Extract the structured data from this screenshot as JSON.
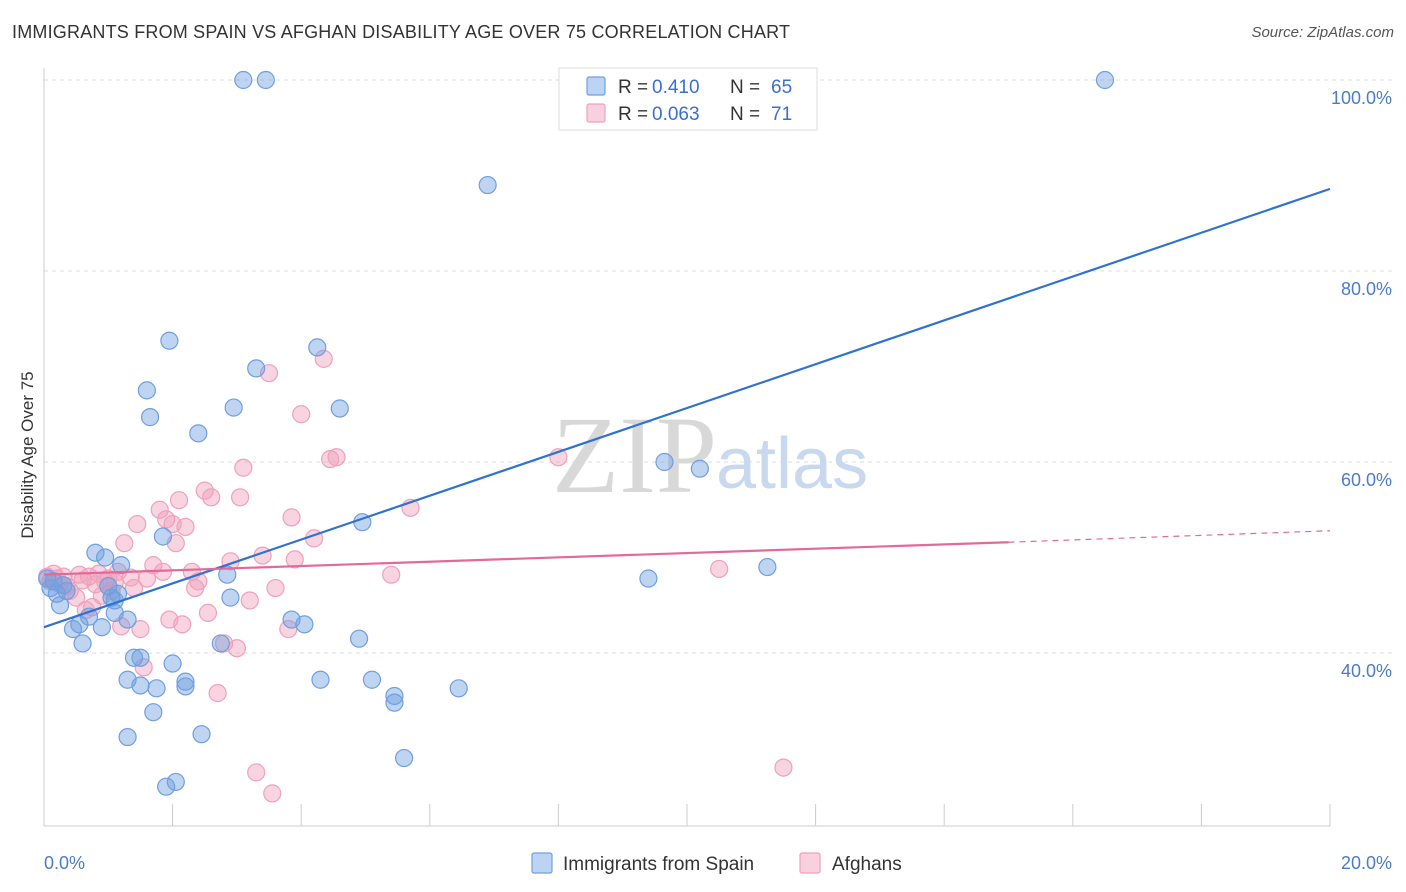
{
  "title": "IMMIGRANTS FROM SPAIN VS AFGHAN DISABILITY AGE OVER 75 CORRELATION CHART",
  "source": "Source: ZipAtlas.com",
  "watermark": {
    "zip": "ZIP",
    "atlas": "atlas"
  },
  "legend": {
    "rows": [
      {
        "r_label": "R =",
        "r_value": "0.410",
        "n_label": "N =",
        "n_value": "65"
      },
      {
        "r_label": "R =",
        "r_value": "0.063",
        "n_label": "N =",
        "n_value": "71"
      }
    ]
  },
  "chart_data": {
    "type": "scatter",
    "ylabel": "Disability Age Over 75",
    "xlim": [
      0,
      20
    ],
    "ylim": [
      22,
      102
    ],
    "x_ticks": [
      "0.0%",
      "20.0%"
    ],
    "y_ticks": [
      "40.0%",
      "60.0%",
      "80.0%",
      "100.0%"
    ],
    "y_tick_values": [
      40,
      60,
      80,
      100
    ],
    "grid": true,
    "legend_position": "top-center",
    "colors": {
      "spain": "#6f9fe0",
      "afghans": "#f0a0bb",
      "spain_line": "#2f72d0",
      "afghans_line": "#e36a98"
    },
    "series": [
      {
        "name": "Immigrants from Spain",
        "trend": {
          "x": [
            0,
            20
          ],
          "y": [
            42.7,
            88.6
          ]
        },
        "points": [
          [
            0.05,
            47.8
          ],
          [
            0.1,
            46.8
          ],
          [
            0.15,
            47.5
          ],
          [
            0.2,
            46.2
          ],
          [
            0.25,
            45.0
          ],
          [
            0.3,
            47.1
          ],
          [
            0.35,
            46.5
          ],
          [
            0.45,
            42.5
          ],
          [
            0.55,
            43.0
          ],
          [
            0.6,
            41.0
          ],
          [
            0.7,
            43.8
          ],
          [
            0.8,
            50.5
          ],
          [
            0.9,
            42.7
          ],
          [
            0.95,
            50.0
          ],
          [
            1.0,
            47.0
          ],
          [
            1.05,
            45.8
          ],
          [
            1.1,
            44.2
          ],
          [
            1.15,
            46.2
          ],
          [
            1.2,
            49.2
          ],
          [
            1.3,
            43.5
          ],
          [
            1.3,
            31.2
          ],
          [
            1.3,
            37.2
          ],
          [
            1.4,
            39.5
          ],
          [
            1.5,
            36.6
          ],
          [
            1.5,
            39.5
          ],
          [
            1.6,
            67.5
          ],
          [
            1.65,
            64.7
          ],
          [
            1.7,
            33.8
          ],
          [
            1.75,
            36.3
          ],
          [
            1.85,
            52.2
          ],
          [
            1.95,
            72.7
          ],
          [
            2.0,
            38.9
          ],
          [
            2.05,
            26.5
          ],
          [
            1.9,
            26.0
          ],
          [
            2.2,
            37.0
          ],
          [
            2.2,
            36.5
          ],
          [
            2.4,
            63.0
          ],
          [
            2.45,
            31.5
          ],
          [
            2.75,
            41.0
          ],
          [
            2.85,
            48.2
          ],
          [
            2.9,
            45.8
          ],
          [
            2.95,
            65.7
          ],
          [
            3.1,
            100.0
          ],
          [
            3.45,
            100.0
          ],
          [
            3.3,
            69.8
          ],
          [
            3.85,
            43.5
          ],
          [
            4.05,
            43.0
          ],
          [
            4.25,
            72.0
          ],
          [
            4.3,
            37.2
          ],
          [
            4.6,
            65.6
          ],
          [
            4.95,
            53.7
          ],
          [
            4.9,
            41.5
          ],
          [
            5.1,
            37.2
          ],
          [
            5.45,
            35.5
          ],
          [
            5.45,
            34.8
          ],
          [
            5.6,
            29.0
          ],
          [
            6.45,
            36.3
          ],
          [
            6.9,
            89.0
          ],
          [
            8.35,
            100.0
          ],
          [
            9.4,
            47.8
          ],
          [
            9.65,
            60.0
          ],
          [
            10.2,
            59.3
          ],
          [
            11.25,
            49.0
          ],
          [
            16.5,
            100.0
          ],
          [
            1.1,
            45.5
          ]
        ]
      },
      {
        "name": "Afghans",
        "trend": {
          "x": [
            0,
            15
          ],
          "y": [
            48.2,
            51.6
          ]
        },
        "trend_dashed": {
          "x": [
            15,
            20
          ],
          "y": [
            51.6,
            52.8
          ]
        },
        "points": [
          [
            0.05,
            48.0
          ],
          [
            0.1,
            47.5
          ],
          [
            0.15,
            48.3
          ],
          [
            0.2,
            47.8
          ],
          [
            0.25,
            47.2
          ],
          [
            0.3,
            48.0
          ],
          [
            0.35,
            47.0
          ],
          [
            0.4,
            46.5
          ],
          [
            0.5,
            45.8
          ],
          [
            0.55,
            48.2
          ],
          [
            0.6,
            47.6
          ],
          [
            0.7,
            48.0
          ],
          [
            0.75,
            44.8
          ],
          [
            0.8,
            47.2
          ],
          [
            0.85,
            48.3
          ],
          [
            0.9,
            46.0
          ],
          [
            0.95,
            47.5
          ],
          [
            1.0,
            47.8
          ],
          [
            1.05,
            46.5
          ],
          [
            1.1,
            47.4
          ],
          [
            1.15,
            48.5
          ],
          [
            1.2,
            42.8
          ],
          [
            1.25,
            51.5
          ],
          [
            1.35,
            47.9
          ],
          [
            1.4,
            46.8
          ],
          [
            1.45,
            53.5
          ],
          [
            1.5,
            42.5
          ],
          [
            1.55,
            38.5
          ],
          [
            1.6,
            47.8
          ],
          [
            1.7,
            49.2
          ],
          [
            1.8,
            55.0
          ],
          [
            1.85,
            48.5
          ],
          [
            1.9,
            54.0
          ],
          [
            2.0,
            53.5
          ],
          [
            2.05,
            51.5
          ],
          [
            2.1,
            56.0
          ],
          [
            2.15,
            43.0
          ],
          [
            2.2,
            53.2
          ],
          [
            2.3,
            48.5
          ],
          [
            2.35,
            46.8
          ],
          [
            2.4,
            47.5
          ],
          [
            2.5,
            57.0
          ],
          [
            2.55,
            44.2
          ],
          [
            2.6,
            56.3
          ],
          [
            2.7,
            35.8
          ],
          [
            2.8,
            41.0
          ],
          [
            2.9,
            49.6
          ],
          [
            3.0,
            40.5
          ],
          [
            3.05,
            56.3
          ],
          [
            3.1,
            59.4
          ],
          [
            3.2,
            45.5
          ],
          [
            3.3,
            27.5
          ],
          [
            3.4,
            50.2
          ],
          [
            3.5,
            69.3
          ],
          [
            3.55,
            25.3
          ],
          [
            3.6,
            46.8
          ],
          [
            3.8,
            42.5
          ],
          [
            3.85,
            54.2
          ],
          [
            3.9,
            49.8
          ],
          [
            4.0,
            65.0
          ],
          [
            4.2,
            52.0
          ],
          [
            4.35,
            70.8
          ],
          [
            4.45,
            60.3
          ],
          [
            4.55,
            60.5
          ],
          [
            5.4,
            48.2
          ],
          [
            5.7,
            55.2
          ],
          [
            8.0,
            60.5
          ],
          [
            10.5,
            48.8
          ],
          [
            11.5,
            28.0
          ],
          [
            1.95,
            43.5
          ],
          [
            0.65,
            44.5
          ]
        ]
      }
    ]
  }
}
